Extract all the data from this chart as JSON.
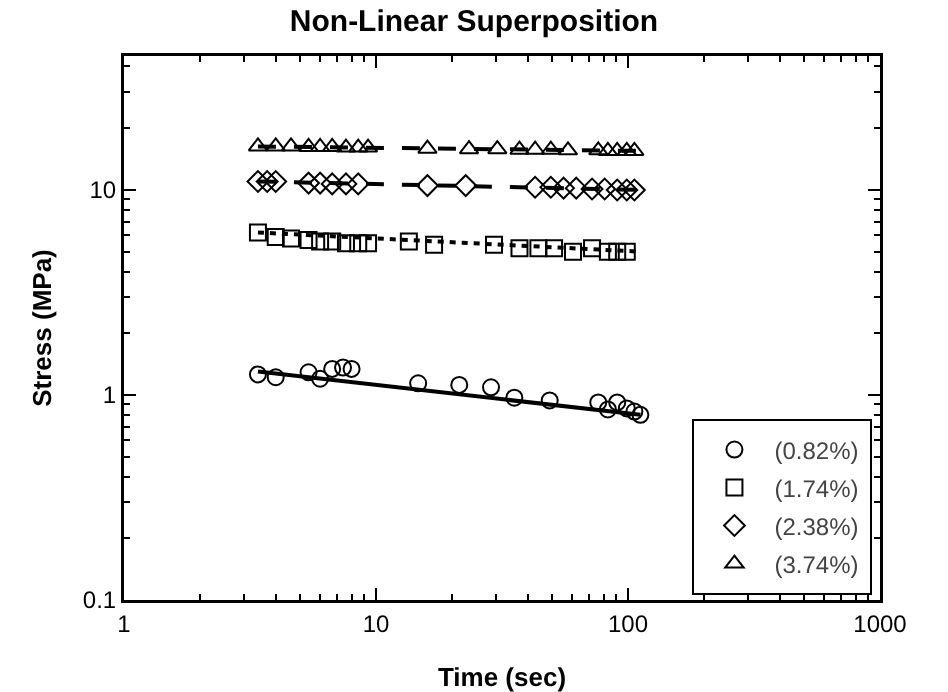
{
  "chart_data": {
    "type": "scatter",
    "title": "Non-Linear Superposition",
    "xlabel": "Time (sec)",
    "ylabel": "Stress (MPa)",
    "log": "xy",
    "xlim": [
      1,
      1000
    ],
    "ylim": [
      0.1,
      45
    ],
    "xticks": [
      1,
      10,
      100,
      1000
    ],
    "yticks": [
      0.1,
      1,
      10
    ],
    "grid": false,
    "legend": "bottom right",
    "series": [
      {
        "name": "(0.82%)",
        "color": "#000000",
        "marker": "circle",
        "line_style": "solid",
        "x": [
          3.4,
          4.0,
          5.4,
          6.0,
          6.7,
          7.4,
          8.0,
          14.7,
          21.4,
          28.6,
          35.4,
          48.9,
          76.2,
          83.2,
          90.6,
          98.9,
          106,
          112
        ],
        "values": [
          1.26,
          1.22,
          1.29,
          1.2,
          1.34,
          1.36,
          1.34,
          1.14,
          1.12,
          1.09,
          0.97,
          0.94,
          0.92,
          0.85,
          0.92,
          0.86,
          0.83,
          0.8
        ]
      },
      {
        "name": "(1.74%)",
        "color": "#000000",
        "marker": "square",
        "line_style": "dotted",
        "x": [
          3.4,
          4.0,
          4.6,
          5.4,
          6.0,
          6.7,
          7.6,
          8.5,
          9.3,
          13.5,
          17.0,
          29.4,
          37.1,
          44.1,
          50.9,
          60.5,
          72.0,
          83.2,
          90.6,
          98.9
        ],
        "values": [
          6.2,
          5.9,
          5.8,
          5.7,
          5.6,
          5.6,
          5.5,
          5.5,
          5.5,
          5.6,
          5.4,
          5.4,
          5.2,
          5.2,
          5.2,
          5.0,
          5.2,
          5.0,
          5.0,
          5.0
        ]
      },
      {
        "name": "(2.38%)",
        "color": "#000000",
        "marker": "diamond",
        "line_style": "dashed",
        "x": [
          3.4,
          3.7,
          4.0,
          5.4,
          6.0,
          6.7,
          7.6,
          8.5,
          16.0,
          22.7,
          42.8,
          49.4,
          55.5,
          62.3,
          72.0,
          80.8,
          90.6,
          98.9,
          106
        ],
        "values": [
          11.0,
          11.0,
          11.0,
          10.8,
          10.8,
          10.7,
          10.7,
          10.7,
          10.5,
          10.5,
          10.3,
          10.3,
          10.2,
          10.2,
          10.1,
          10.1,
          10.0,
          10.0,
          10.0
        ]
      },
      {
        "name": "(3.74%)",
        "color": "#000000",
        "marker": "triangle",
        "line_style": "dashed",
        "x": [
          3.4,
          4.0,
          4.6,
          5.4,
          6.0,
          6.7,
          7.6,
          8.5,
          9.3,
          16.0,
          23.4,
          30.3,
          37.1,
          42.8,
          49.4,
          57.8,
          76.2,
          83.2,
          90.6,
          98.9,
          106
        ],
        "values": [
          16.3,
          16.3,
          16.3,
          16.2,
          16.2,
          16.2,
          16.1,
          16.1,
          16.1,
          15.9,
          15.8,
          15.8,
          15.7,
          15.7,
          15.7,
          15.6,
          15.6,
          15.5,
          15.5,
          15.5,
          15.5
        ]
      },
      {
        "type": "line",
        "color": "#000000",
        "line_style": "solid",
        "marker": "none",
        "x": [
          3.4,
          112
        ],
        "values": [
          1.3,
          0.8
        ]
      },
      {
        "type": "line",
        "color": "#000000",
        "line_style": "dotted",
        "marker": "none",
        "x": [
          3.4,
          112
        ],
        "values": [
          6.2,
          5.0
        ]
      },
      {
        "type": "line",
        "color": "#000000",
        "line_style": "dashed",
        "marker": "none",
        "x": [
          3.4,
          112
        ],
        "values": [
          11.0,
          10.0
        ]
      },
      {
        "type": "line",
        "color": "#000000",
        "line_style": "dashed",
        "marker": "none",
        "x": [
          3.4,
          112
        ],
        "values": [
          16.3,
          15.5
        ]
      }
    ]
  }
}
